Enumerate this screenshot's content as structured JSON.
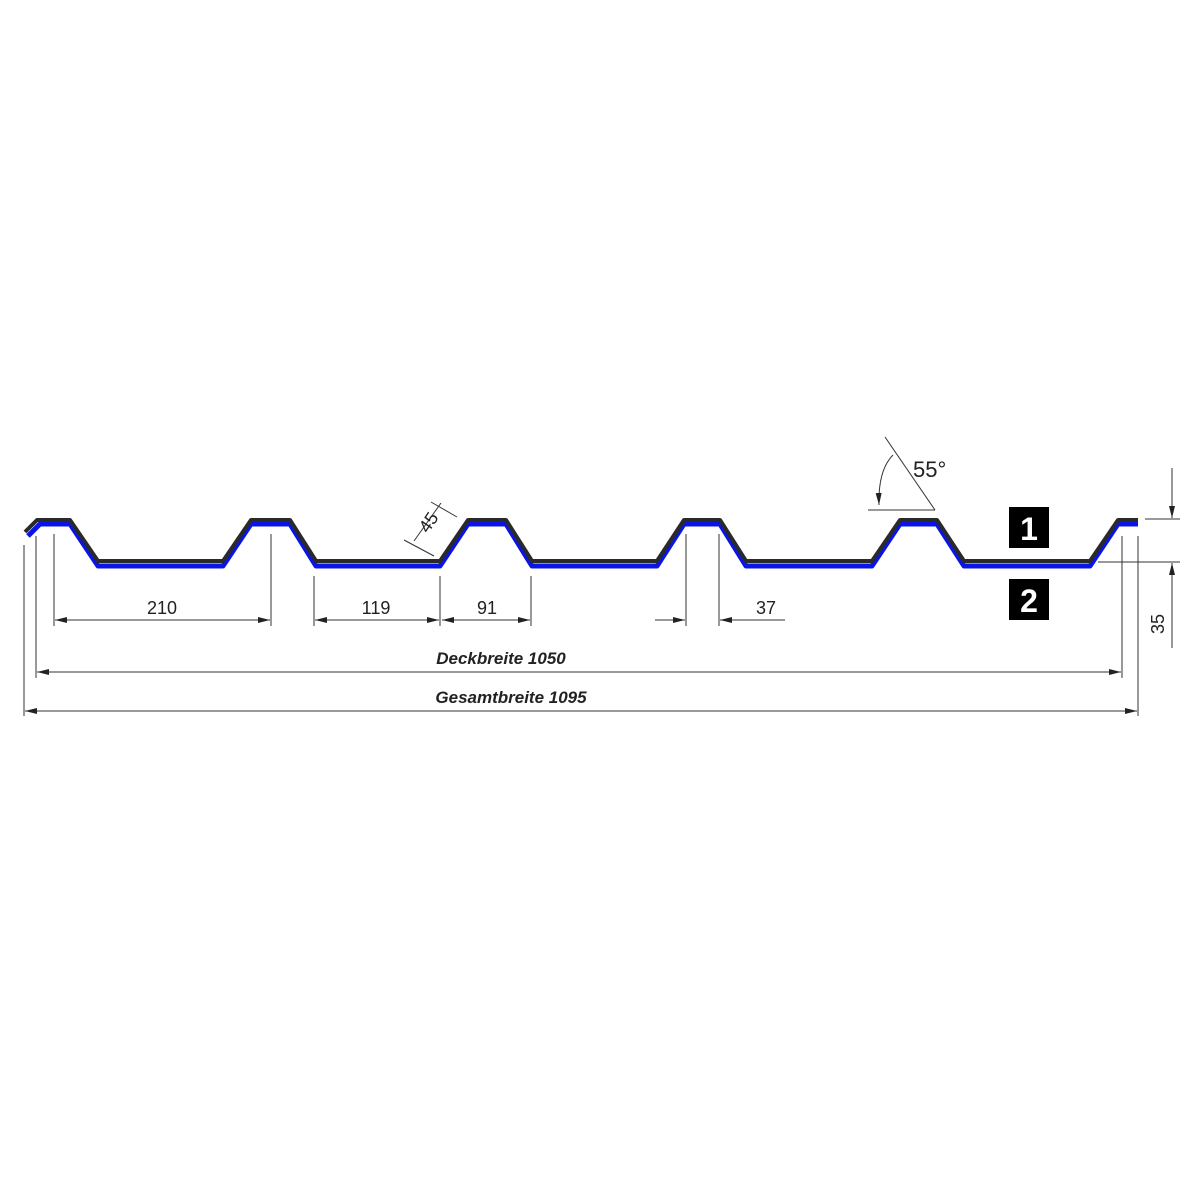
{
  "colors": {
    "profile_outer": "#2a2a2a",
    "profile_inner": "#0a14e6",
    "lines": "#333333",
    "marker_bg": "#000000"
  },
  "dimensions": {
    "rib_spacing": "210",
    "valley_width": "119",
    "rib_base": "91",
    "rib_top": "37",
    "flank": "45",
    "angle": "55°",
    "height": "35",
    "cover_width": "Deckbreite 1050",
    "total_width": "Gesamtbreite 1095"
  },
  "markers": {
    "top": "1",
    "bottom": "2"
  }
}
